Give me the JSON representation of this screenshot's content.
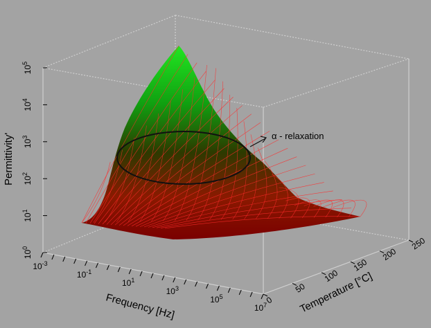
{
  "chart_data": {
    "type": "surface",
    "xlabel": "Frequency [Hz]",
    "ylabel": "Temperature [°C]",
    "zlabel": "Permittivity'",
    "x_scale": "log",
    "z_scale": "log",
    "x_ticks": [
      {
        "value": 0.001,
        "base": "10",
        "exp": "-3"
      },
      {
        "value": 0.1,
        "base": "10",
        "exp": "-1"
      },
      {
        "value": 10,
        "base": "10",
        "exp": "1"
      },
      {
        "value": 1000,
        "base": "10",
        "exp": "3"
      },
      {
        "value": 100000,
        "base": "10",
        "exp": "5"
      },
      {
        "value": 10000000,
        "base": "10",
        "exp": "7"
      }
    ],
    "y_ticks": [
      "0",
      "50",
      "100",
      "150",
      "200",
      "250"
    ],
    "z_ticks": [
      {
        "value": 1,
        "base": "10",
        "exp": "0"
      },
      {
        "value": 10,
        "base": "10",
        "exp": "1"
      },
      {
        "value": 100,
        "base": "10",
        "exp": "2"
      },
      {
        "value": 1000,
        "base": "10",
        "exp": "3"
      },
      {
        "value": 10000,
        "base": "10",
        "exp": "4"
      },
      {
        "value": 100000,
        "base": "10",
        "exp": "5"
      }
    ],
    "xlim": [
      0.001,
      10000000
    ],
    "ylim": [
      0,
      250
    ],
    "zlim": [
      1,
      100000
    ],
    "surface_peak": {
      "frequency": 0.001,
      "temperature": 250,
      "permittivity": 200000
    },
    "surface_baseline_permittivity": 10,
    "annotation": "α - relaxation",
    "colors": {
      "background": "#a3a3a3",
      "mesh": "#ff2a2a",
      "surface_low": "#7a0000",
      "surface_high": "#1ee61e",
      "box_lines": "#c8c8c8"
    }
  }
}
